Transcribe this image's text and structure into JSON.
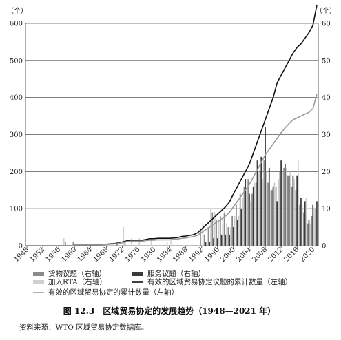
{
  "chart_data": {
    "type": "bar-line",
    "left_axis": {
      "unit": "（个）",
      "ticks": [
        0,
        100,
        200,
        300,
        400,
        500,
        600
      ],
      "range": [
        0,
        600
      ]
    },
    "right_axis": {
      "unit": "（个）",
      "ticks": [
        0,
        10,
        20,
        30,
        40,
        50,
        60
      ],
      "range": [
        0,
        60
      ]
    },
    "x_ticks": [
      "1948",
      "1952",
      "1956",
      "1960",
      "1964",
      "1968",
      "1972",
      "1976",
      "1980",
      "1984",
      "1988",
      "1992",
      "1996",
      "2000",
      "2004",
      "2008",
      "2012",
      "2016",
      "2020"
    ],
    "years": [
      1948,
      1949,
      1950,
      1951,
      1952,
      1953,
      1954,
      1955,
      1956,
      1957,
      1958,
      1959,
      1960,
      1961,
      1962,
      1963,
      1964,
      1965,
      1966,
      1967,
      1968,
      1969,
      1970,
      1971,
      1972,
      1973,
      1974,
      1975,
      1976,
      1977,
      1978,
      1979,
      1980,
      1981,
      1982,
      1983,
      1984,
      1985,
      1986,
      1987,
      1988,
      1989,
      1990,
      1991,
      1992,
      1993,
      1994,
      1995,
      1996,
      1997,
      1998,
      1999,
      2000,
      2001,
      2002,
      2003,
      2004,
      2005,
      2006,
      2007,
      2008,
      2009,
      2010,
      2011,
      2012,
      2013,
      2014,
      2015,
      2016,
      2017,
      2018,
      2019,
      2020,
      2021
    ],
    "series": [
      {
        "name": "货物议题（右轴）",
        "axis": "right",
        "kind": "bar",
        "color": "#8a8a8a",
        "values": [
          0,
          0,
          0,
          0,
          0,
          0,
          0,
          0,
          0,
          0,
          1,
          0,
          1,
          0,
          0,
          0,
          0,
          0,
          0,
          0,
          0,
          0,
          0,
          1,
          0,
          1,
          0,
          0,
          0,
          0,
          0,
          0,
          0,
          0,
          0,
          0,
          0,
          0,
          0,
          0,
          0,
          0,
          0,
          0,
          4,
          3,
          5,
          9,
          7,
          8,
          9,
          5,
          8,
          11,
          14,
          16,
          18,
          14,
          17,
          20,
          23,
          17,
          15,
          16,
          20,
          21,
          19,
          16,
          15,
          11,
          9,
          6,
          8,
          10
        ]
      },
      {
        "name": "服务议题（右轴）",
        "axis": "right",
        "kind": "bar",
        "color": "#3a3a3a",
        "values": [
          0,
          0,
          0,
          0,
          0,
          0,
          0,
          0,
          0,
          0,
          0,
          0,
          0,
          0,
          0,
          0,
          0,
          0,
          0,
          0,
          0,
          0,
          0,
          0,
          0,
          0,
          0,
          0,
          0,
          0,
          0,
          0,
          0,
          0,
          0,
          0,
          0,
          0,
          0,
          0,
          0,
          0,
          0,
          0,
          0,
          1,
          1,
          2,
          2,
          3,
          3,
          3,
          5,
          7,
          10,
          18,
          14,
          16,
          23,
          24,
          32,
          21,
          16,
          12,
          23,
          22,
          19,
          19,
          19,
          13,
          12,
          7,
          11,
          12
        ]
      },
      {
        "name": "加入RTA（右轴）",
        "axis": "right",
        "kind": "bar",
        "color": "#cfcfcf",
        "values": [
          0,
          0,
          0,
          0,
          0,
          0,
          0,
          0,
          0,
          2,
          0,
          0,
          0,
          0,
          0,
          0,
          0,
          0,
          0,
          0,
          0,
          0,
          0,
          0,
          5,
          0,
          2,
          0,
          2,
          0,
          0,
          2,
          0,
          0,
          0,
          1,
          2,
          0,
          0,
          0,
          0,
          0,
          0,
          0,
          6,
          0,
          10,
          9,
          7,
          6,
          6,
          5,
          8,
          8,
          13,
          15,
          12,
          17,
          20,
          18,
          20,
          15,
          17,
          18,
          20,
          21,
          20,
          18,
          23,
          11,
          13,
          6,
          10,
          11
        ]
      },
      {
        "name": "有效的区域贸易协定议题的累计数量（左轴）",
        "axis": "left",
        "kind": "line",
        "color": "#111111",
        "values": [
          0,
          0,
          0,
          0,
          0,
          0,
          0,
          0,
          0,
          0,
          0,
          0,
          2,
          2,
          2,
          2,
          2,
          2,
          2,
          3,
          4,
          5,
          6,
          7,
          10,
          13,
          15,
          15,
          15,
          15,
          17,
          19,
          19,
          20,
          20,
          20,
          20,
          21,
          22,
          25,
          26,
          28,
          30,
          35,
          45,
          55,
          65,
          75,
          85,
          95,
          105,
          118,
          140,
          160,
          180,
          200,
          220,
          250,
          280,
          310,
          340,
          370,
          400,
          440,
          460,
          480,
          500,
          520,
          535,
          545,
          560,
          575,
          595,
          650
        ]
      },
      {
        "name": "有效的区域贸易协定的累计数量（左轴）",
        "axis": "left",
        "kind": "line",
        "color": "#9a9a9a",
        "values": [
          0,
          0,
          0,
          0,
          0,
          0,
          0,
          0,
          0,
          0,
          0,
          0,
          2,
          2,
          2,
          2,
          2,
          2,
          2,
          2,
          3,
          4,
          5,
          6,
          8,
          11,
          12,
          12,
          12,
          12,
          14,
          15,
          15,
          16,
          16,
          16,
          16,
          17,
          18,
          20,
          21,
          23,
          25,
          28,
          36,
          43,
          50,
          58,
          65,
          72,
          80,
          90,
          105,
          120,
          135,
          150,
          165,
          185,
          205,
          225,
          245,
          260,
          275,
          290,
          305,
          318,
          330,
          340,
          345,
          350,
          355,
          360,
          370,
          410
        ]
      }
    ]
  },
  "caption": "图 12.3　区域贸易协定的发展趋势（1948—2021 年）",
  "source": "资料来源：WTO 区域贸易协定数据库。"
}
